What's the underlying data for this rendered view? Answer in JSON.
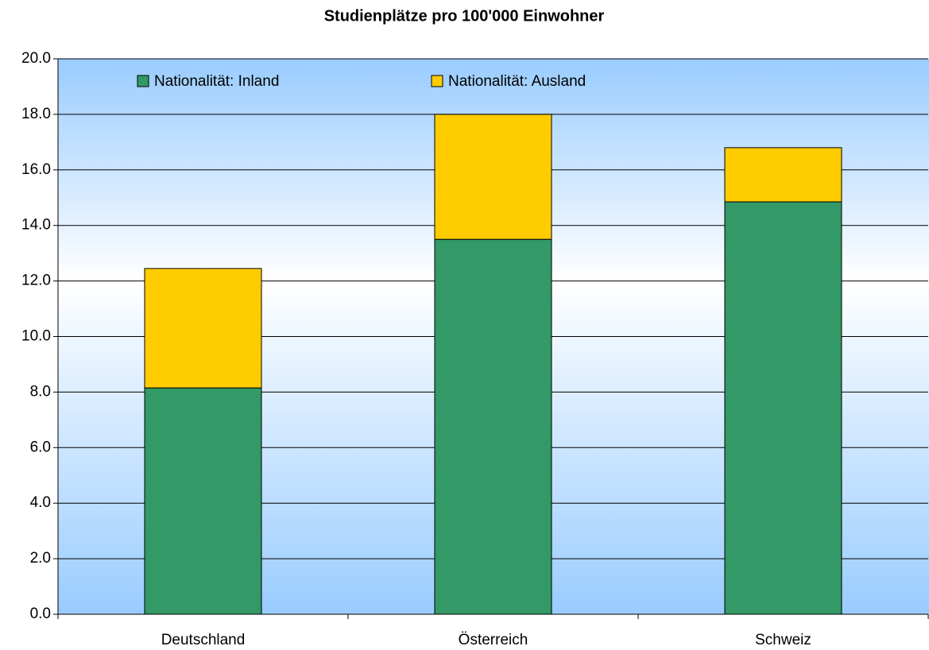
{
  "chart_data": {
    "type": "stacked-bar",
    "title": "Studienplätze pro 100'000 Einwohner",
    "categories": [
      "Deutschland",
      "Österreich",
      "Schweiz"
    ],
    "series": [
      {
        "name": "Nationalität: Inland",
        "color": "#339966",
        "values": [
          8.15,
          13.5,
          14.85
        ]
      },
      {
        "name": "Nationalität: Ausland",
        "color": "#ffcc00",
        "values": [
          4.3,
          4.5,
          1.95
        ]
      }
    ],
    "ylim": [
      0,
      20
    ],
    "yticks": [
      {
        "value": 0,
        "label": "0.0"
      },
      {
        "value": 2,
        "label": "2.0"
      },
      {
        "value": 4,
        "label": "4.0"
      },
      {
        "value": 6,
        "label": "6.0"
      },
      {
        "value": 8,
        "label": "8.0"
      },
      {
        "value": 10,
        "label": "10.0"
      },
      {
        "value": 12,
        "label": "12.0"
      },
      {
        "value": 14,
        "label": "14.0"
      },
      {
        "value": 16,
        "label": "16.0"
      },
      {
        "value": 18,
        "label": "18.0"
      },
      {
        "value": 20,
        "label": "20.0"
      }
    ],
    "grid": true
  }
}
